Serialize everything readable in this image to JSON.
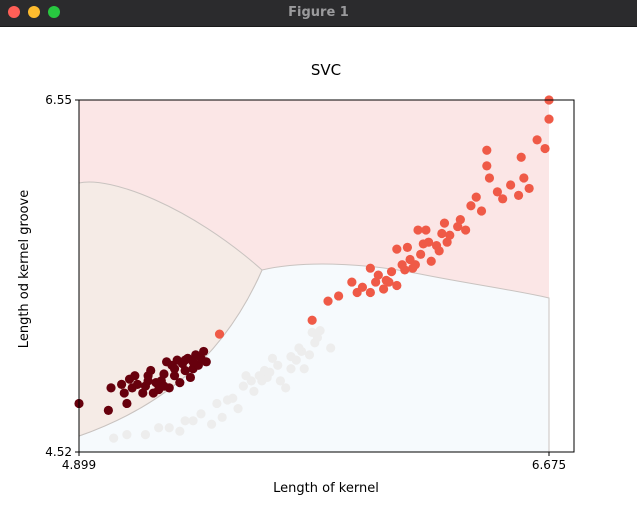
{
  "window": {
    "title": "Figure 1"
  },
  "chart_data": {
    "type": "scatter",
    "title": "SVC",
    "xlabel": "Length of kernel",
    "ylabel": "Length od kernel groove",
    "xlim": [
      4.899,
      6.675
    ],
    "ylim": [
      4.52,
      6.55
    ],
    "xticks": [
      "4.899",
      "6.675"
    ],
    "yticks": [
      "4.52",
      "6.55"
    ],
    "grid": false,
    "region_colors": {
      "class_1": "#f5ebe6",
      "class_2": "#f6fafd",
      "class_3": "#fbe6e6",
      "boundary": "#c9c3c0"
    },
    "series": [
      {
        "color": "#67000d",
        "points": [
          [
            4.899,
            4.8
          ],
          [
            5.01,
            4.76
          ],
          [
            5.02,
            4.89
          ],
          [
            5.06,
            4.91
          ],
          [
            5.07,
            4.86
          ],
          [
            5.08,
            4.8
          ],
          [
            5.09,
            4.94
          ],
          [
            5.1,
            4.89
          ],
          [
            5.11,
            4.96
          ],
          [
            5.12,
            4.91
          ],
          [
            5.14,
            4.86
          ],
          [
            5.15,
            4.9
          ],
          [
            5.16,
            4.96
          ],
          [
            5.17,
            4.99
          ],
          [
            5.18,
            4.86
          ],
          [
            5.19,
            4.92
          ],
          [
            5.2,
            4.88
          ],
          [
            5.21,
            4.93
          ],
          [
            5.22,
            4.97
          ],
          [
            5.23,
            5.04
          ],
          [
            5.24,
            4.89
          ],
          [
            5.25,
            5.02
          ],
          [
            5.26,
            4.96
          ],
          [
            5.27,
            5.05
          ],
          [
            5.28,
            4.92
          ],
          [
            5.29,
            5.03
          ],
          [
            5.3,
            4.99
          ],
          [
            5.31,
            5.06
          ],
          [
            5.32,
            4.95
          ],
          [
            5.33,
            5.0
          ],
          [
            5.34,
            5.08
          ],
          [
            5.35,
            5.02
          ],
          [
            5.36,
            5.06
          ],
          [
            5.37,
            5.1
          ],
          [
            5.38,
            5.04
          ],
          [
            5.3,
            5.05
          ],
          [
            5.26,
            5.0
          ],
          [
            5.22,
            4.9
          ],
          [
            5.16,
            4.93
          ],
          [
            5.33,
            5.04
          ]
        ]
      },
      {
        "color": "#ededed",
        "points": [
          [
            5.03,
            4.6
          ],
          [
            5.08,
            4.62
          ],
          [
            5.15,
            4.62
          ],
          [
            5.24,
            4.66
          ],
          [
            5.28,
            4.64
          ],
          [
            5.33,
            4.7
          ],
          [
            5.4,
            4.68
          ],
          [
            5.44,
            4.72
          ],
          [
            5.46,
            4.82
          ],
          [
            5.5,
            4.77
          ],
          [
            5.52,
            4.9
          ],
          [
            5.56,
            4.87
          ],
          [
            5.58,
            4.96
          ],
          [
            5.61,
            4.95
          ],
          [
            5.63,
            5.06
          ],
          [
            5.66,
            4.93
          ],
          [
            5.7,
            5.0
          ],
          [
            5.72,
            5.05
          ],
          [
            5.74,
            5.1
          ],
          [
            5.75,
            5.0
          ],
          [
            5.77,
            5.08
          ],
          [
            5.79,
            5.15
          ],
          [
            5.8,
            5.18
          ],
          [
            5.85,
            5.12
          ],
          [
            5.68,
            4.89
          ],
          [
            5.6,
            4.99
          ],
          [
            5.55,
            4.93
          ],
          [
            5.65,
            5.02
          ],
          [
            5.7,
            5.07
          ],
          [
            5.42,
            4.8
          ],
          [
            5.48,
            4.83
          ],
          [
            5.53,
            4.96
          ],
          [
            5.59,
            4.93
          ],
          [
            5.78,
            5.21
          ],
          [
            5.81,
            5.22
          ],
          [
            5.36,
            4.74
          ],
          [
            5.2,
            4.66
          ],
          [
            5.3,
            4.7
          ],
          [
            5.62,
            4.98
          ],
          [
            5.73,
            5.12
          ]
        ]
      },
      {
        "color": "#ef5a47",
        "points": [
          [
            5.78,
            5.28
          ],
          [
            5.84,
            5.39
          ],
          [
            5.88,
            5.42
          ],
          [
            5.93,
            5.5
          ],
          [
            5.95,
            5.44
          ],
          [
            5.97,
            5.47
          ],
          [
            6.0,
            5.44
          ],
          [
            6.02,
            5.5
          ],
          [
            6.03,
            5.54
          ],
          [
            6.05,
            5.46
          ],
          [
            6.06,
            5.51
          ],
          [
            6.07,
            5.5
          ],
          [
            6.08,
            5.56
          ],
          [
            6.1,
            5.48
          ],
          [
            6.12,
            5.6
          ],
          [
            6.13,
            5.57
          ],
          [
            6.14,
            5.7
          ],
          [
            6.15,
            5.63
          ],
          [
            6.16,
            5.58
          ],
          [
            6.17,
            5.6
          ],
          [
            6.18,
            5.8
          ],
          [
            6.19,
            5.66
          ],
          [
            6.2,
            5.72
          ],
          [
            6.21,
            5.8
          ],
          [
            6.22,
            5.73
          ],
          [
            6.23,
            5.62
          ],
          [
            6.25,
            5.71
          ],
          [
            6.26,
            5.68
          ],
          [
            6.27,
            5.78
          ],
          [
            6.28,
            5.84
          ],
          [
            6.29,
            5.73
          ],
          [
            6.3,
            5.77
          ],
          [
            6.33,
            5.82
          ],
          [
            6.34,
            5.86
          ],
          [
            6.36,
            5.8
          ],
          [
            6.38,
            5.94
          ],
          [
            6.4,
            5.99
          ],
          [
            6.42,
            5.91
          ],
          [
            6.44,
            6.17
          ],
          [
            6.45,
            6.1
          ],
          [
            6.48,
            6.02
          ],
          [
            6.5,
            5.98
          ],
          [
            6.53,
            6.06
          ],
          [
            6.56,
            6.0
          ],
          [
            6.58,
            6.1
          ],
          [
            6.6,
            6.04
          ],
          [
            6.63,
            6.32
          ],
          [
            6.66,
            6.27
          ],
          [
            6.675,
            6.55
          ],
          [
            6.675,
            6.44
          ],
          [
            6.44,
            6.26
          ],
          [
            6.57,
            6.22
          ],
          [
            5.43,
            5.2
          ],
          [
            6.0,
            5.58
          ],
          [
            6.1,
            5.69
          ]
        ]
      }
    ]
  }
}
